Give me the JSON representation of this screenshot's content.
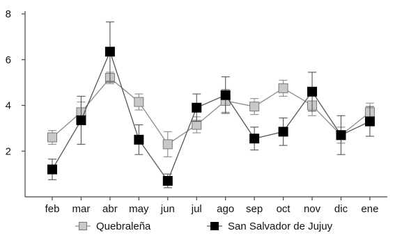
{
  "chart_data": {
    "type": "line",
    "categories": [
      "feb",
      "mar",
      "abr",
      "may",
      "jun",
      "jul",
      "ago",
      "sep",
      "oct",
      "nov",
      "dic",
      "ene"
    ],
    "ylim": [
      0,
      8
    ],
    "yticks": [
      2,
      4,
      6,
      8
    ],
    "grid": false,
    "legend_position": "bottom",
    "series": [
      {
        "name": "Quebraleña",
        "marker": "square",
        "marker_fill": "#c8c8c8",
        "marker_stroke": "#777777",
        "line_color": "#8a8a8a",
        "values": [
          2.6,
          3.7,
          5.2,
          4.15,
          2.3,
          3.15,
          4.2,
          3.95,
          4.75,
          4.0,
          2.7,
          3.7
        ],
        "error": [
          0.3,
          0.45,
          0.25,
          0.35,
          0.55,
          0.35,
          0.5,
          0.35,
          0.35,
          0.45,
          0.35,
          0.4
        ]
      },
      {
        "name": "San Salvador de Jujuy",
        "marker": "square",
        "marker_fill": "#000000",
        "marker_stroke": "#000000",
        "line_color": "#555555",
        "values": [
          1.2,
          3.35,
          6.35,
          2.5,
          0.7,
          3.9,
          4.45,
          2.55,
          2.85,
          4.6,
          2.7,
          3.3
        ],
        "error": [
          0.45,
          1.05,
          1.3,
          0.65,
          0.3,
          0.6,
          0.8,
          0.5,
          0.6,
          0.85,
          0.85,
          0.65
        ]
      }
    ]
  }
}
